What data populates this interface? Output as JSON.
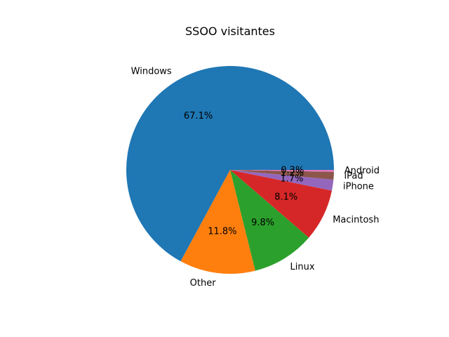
{
  "chart_data": {
    "type": "pie",
    "title": "SSOO visitantes",
    "start_angle_deg": 0,
    "direction": "counterclockwise",
    "slices": [
      {
        "label": "Windows",
        "value": 67.1,
        "pct_label": "67.1%",
        "color": "#1f77b4"
      },
      {
        "label": "Other",
        "value": 11.8,
        "pct_label": "11.8%",
        "color": "#ff7f0e"
      },
      {
        "label": "Linux",
        "value": 9.8,
        "pct_label": "9.8%",
        "color": "#2ca02c"
      },
      {
        "label": "Macintosh",
        "value": 8.1,
        "pct_label": "8.1%",
        "color": "#d62728"
      },
      {
        "label": "iPhone",
        "value": 1.7,
        "pct_label": "1.7%",
        "color": "#9467bd"
      },
      {
        "label": "iPad",
        "value": 1.2,
        "pct_label": "1.2%",
        "color": "#8c564b"
      },
      {
        "label": "Android",
        "value": 0.3,
        "pct_label": "0.3%",
        "color": "#e377c2"
      }
    ]
  }
}
